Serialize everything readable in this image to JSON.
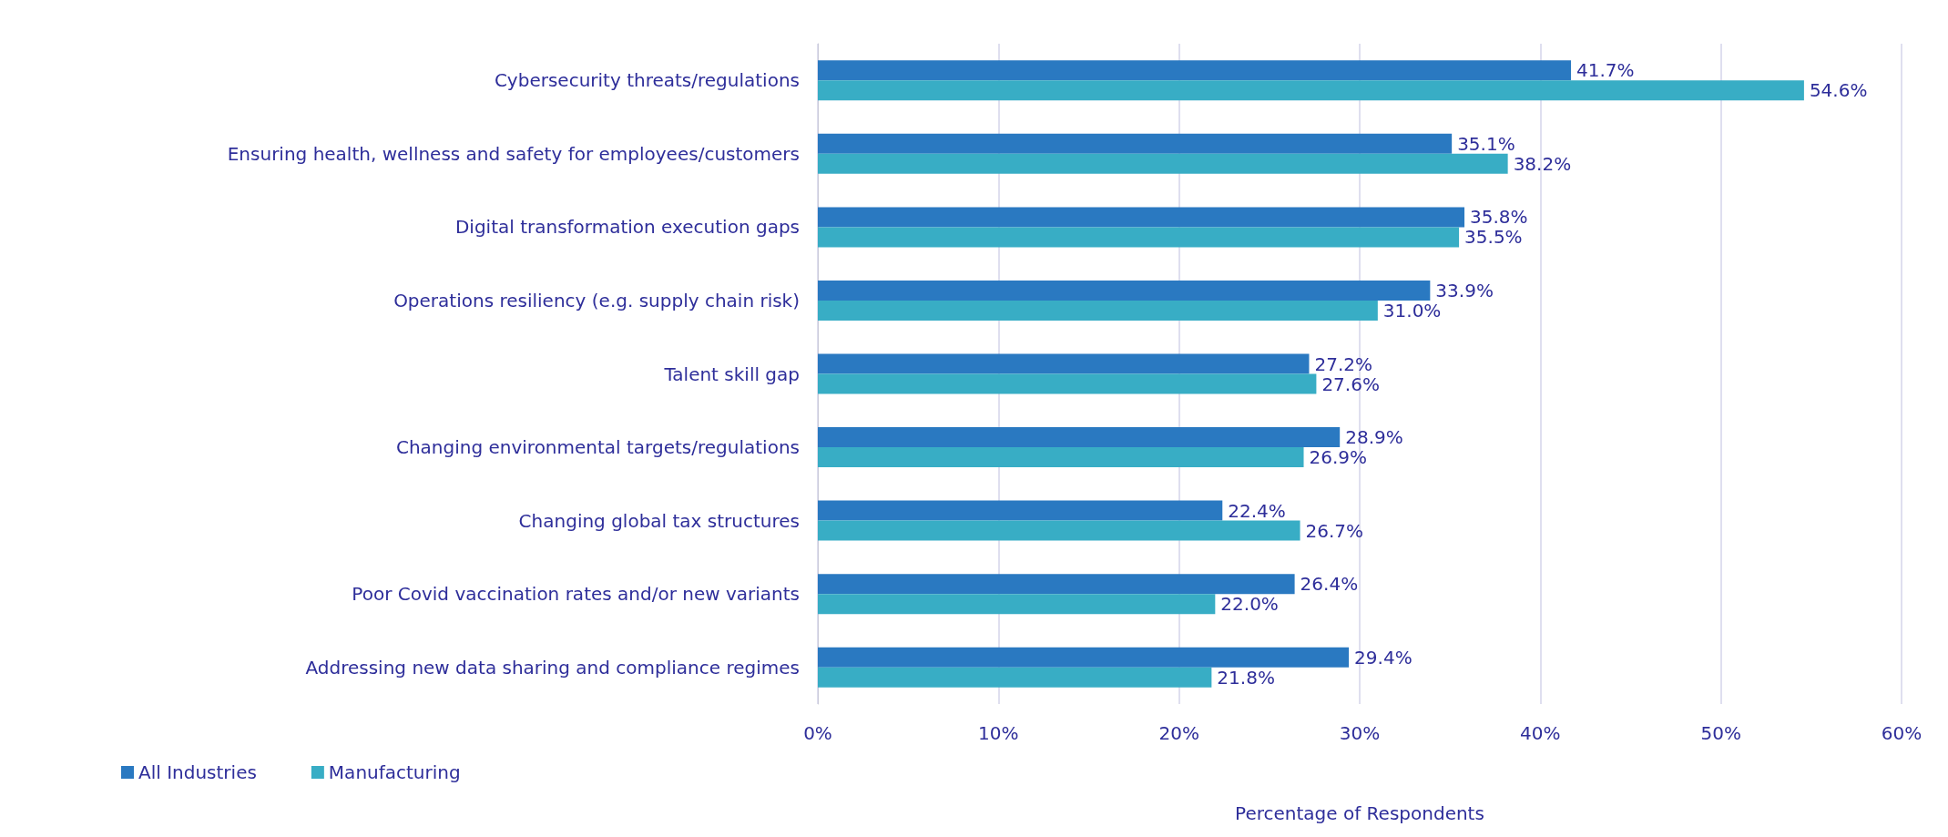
{
  "chart_data": {
    "type": "bar",
    "orientation": "horizontal",
    "xlabel": "Percentage of Respondents",
    "categories": [
      "Cybersecurity threats/regulations",
      "Ensuring health, wellness and safety for employees/customers",
      "Digital transformation execution gaps",
      "Operations resiliency (e.g. supply chain risk)",
      "Talent skill gap",
      "Changing environmental targets/regulations",
      "Changing global tax structures",
      "Poor Covid vaccination rates and/or new variants",
      "Addressing new data sharing and compliance regimes"
    ],
    "series": [
      {
        "name": "All Industries",
        "color": "#2a79c1",
        "values": [
          41.7,
          35.1,
          35.8,
          33.9,
          27.2,
          28.9,
          22.4,
          26.4,
          29.4
        ],
        "value_labels": [
          "41.7%",
          "35.1%",
          "35.8%",
          "33.9%",
          "27.2%",
          "28.9%",
          "22.4%",
          "26.4%",
          "29.4%"
        ]
      },
      {
        "name": "Manufacturing",
        "color": "#38adc5",
        "values": [
          54.6,
          38.2,
          35.5,
          31.0,
          27.6,
          26.9,
          26.7,
          22.0,
          21.8
        ],
        "value_labels": [
          "54.6%",
          "38.2%",
          "35.5%",
          "31.0%",
          "27.6%",
          "26.9%",
          "26.7%",
          "22.0%",
          "21.8%"
        ]
      }
    ],
    "xlim": [
      0,
      60
    ],
    "xticks": [
      {
        "value": 0,
        "label": "0%"
      },
      {
        "value": 10,
        "label": "10%"
      },
      {
        "value": 20,
        "label": "20%"
      },
      {
        "value": 30,
        "label": "30%"
      },
      {
        "value": 40,
        "label": "40%"
      },
      {
        "value": 50,
        "label": "50%"
      },
      {
        "value": 60,
        "label": "60%"
      }
    ],
    "grid": "x",
    "legend": "bottom left"
  }
}
